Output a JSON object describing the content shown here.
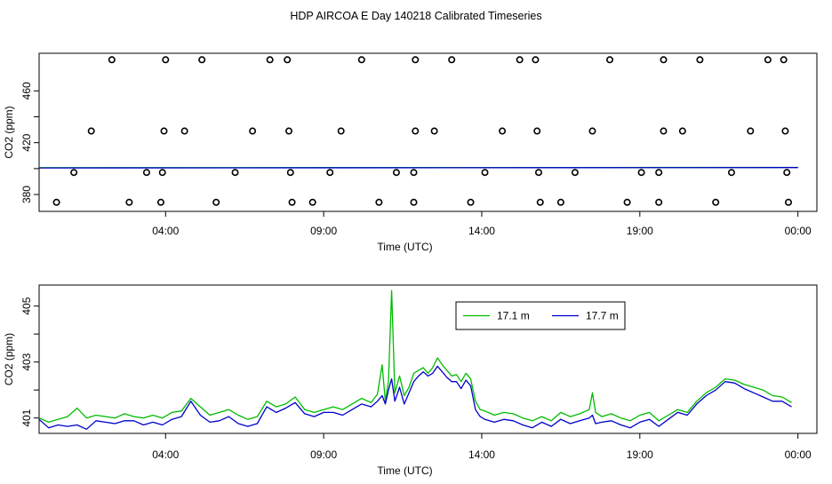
{
  "title": "HDP AIRCOA E  Day 140218  Calibrated Timeseries",
  "colors": {
    "green": "#00bb00",
    "blue": "#0000cc"
  },
  "chart_data": [
    {
      "type": "scatter",
      "xlabel": "Time (UTC)",
      "ylabel": "CO2 (ppm)",
      "x_ticks": [
        "04:00",
        "09:00",
        "14:00",
        "19:00",
        "00:00"
      ],
      "x_tick_hours": [
        4,
        9,
        14,
        19,
        24
      ],
      "xlim": [
        0,
        24.6
      ],
      "y_ticks": [
        380,
        420,
        460
      ],
      "y_tick_labels": [
        "380",
        "420",
        "460"
      ],
      "y_ticks_minor": [
        400,
        440
      ],
      "ylim": [
        367,
        489
      ],
      "calibration_points": [
        {
          "t": 2.3,
          "co2": 484
        },
        {
          "t": 4.0,
          "co2": 484
        },
        {
          "t": 5.15,
          "co2": 484
        },
        {
          "t": 7.3,
          "co2": 484
        },
        {
          "t": 7.85,
          "co2": 484
        },
        {
          "t": 10.2,
          "co2": 484
        },
        {
          "t": 11.9,
          "co2": 484
        },
        {
          "t": 13.05,
          "co2": 484
        },
        {
          "t": 15.2,
          "co2": 484
        },
        {
          "t": 15.7,
          "co2": 484
        },
        {
          "t": 18.05,
          "co2": 484
        },
        {
          "t": 19.75,
          "co2": 484
        },
        {
          "t": 20.9,
          "co2": 484
        },
        {
          "t": 23.05,
          "co2": 484
        },
        {
          "t": 23.55,
          "co2": 484
        },
        {
          "t": 1.65,
          "co2": 429
        },
        {
          "t": 3.95,
          "co2": 429
        },
        {
          "t": 4.6,
          "co2": 429
        },
        {
          "t": 6.75,
          "co2": 429
        },
        {
          "t": 7.9,
          "co2": 429
        },
        {
          "t": 9.55,
          "co2": 429
        },
        {
          "t": 11.9,
          "co2": 429
        },
        {
          "t": 12.5,
          "co2": 429
        },
        {
          "t": 14.65,
          "co2": 429
        },
        {
          "t": 15.75,
          "co2": 429
        },
        {
          "t": 17.5,
          "co2": 429
        },
        {
          "t": 19.75,
          "co2": 429
        },
        {
          "t": 20.35,
          "co2": 429
        },
        {
          "t": 22.5,
          "co2": 429
        },
        {
          "t": 23.6,
          "co2": 429
        },
        {
          "t": 1.1,
          "co2": 397
        },
        {
          "t": 3.4,
          "co2": 397
        },
        {
          "t": 3.9,
          "co2": 397
        },
        {
          "t": 6.2,
          "co2": 397
        },
        {
          "t": 7.95,
          "co2": 397
        },
        {
          "t": 9.2,
          "co2": 397
        },
        {
          "t": 11.3,
          "co2": 397
        },
        {
          "t": 11.85,
          "co2": 397
        },
        {
          "t": 14.1,
          "co2": 397
        },
        {
          "t": 15.8,
          "co2": 397
        },
        {
          "t": 16.95,
          "co2": 397
        },
        {
          "t": 19.05,
          "co2": 397
        },
        {
          "t": 19.6,
          "co2": 397
        },
        {
          "t": 21.9,
          "co2": 397
        },
        {
          "t": 23.65,
          "co2": 397
        },
        {
          "t": 0.55,
          "co2": 374
        },
        {
          "t": 2.85,
          "co2": 374
        },
        {
          "t": 3.85,
          "co2": 374
        },
        {
          "t": 5.6,
          "co2": 374
        },
        {
          "t": 8.0,
          "co2": 374
        },
        {
          "t": 8.65,
          "co2": 374
        },
        {
          "t": 10.75,
          "co2": 374
        },
        {
          "t": 11.85,
          "co2": 374
        },
        {
          "t": 13.65,
          "co2": 374
        },
        {
          "t": 15.85,
          "co2": 374
        },
        {
          "t": 16.5,
          "co2": 374
        },
        {
          "t": 18.6,
          "co2": 374
        },
        {
          "t": 19.6,
          "co2": 374
        },
        {
          "t": 21.4,
          "co2": 374
        },
        {
          "t": 23.7,
          "co2": 374
        }
      ],
      "series": [
        {
          "name": "17.1 m",
          "color": "#00bb00",
          "t": [
            0,
            24
          ],
          "co2": [
            400.7,
            400.9
          ]
        },
        {
          "name": "17.7 m",
          "color": "#0000cc",
          "t": [
            0,
            24
          ],
          "co2": [
            400.5,
            400.8
          ]
        }
      ]
    },
    {
      "type": "line",
      "xlabel": "Time (UTC)",
      "ylabel": "CO2 (ppm)",
      "x_ticks": [
        "04:00",
        "09:00",
        "14:00",
        "19:00",
        "00:00"
      ],
      "x_tick_hours": [
        4,
        9,
        14,
        19,
        24
      ],
      "xlim": [
        0,
        24.6
      ],
      "y_ticks": [
        401,
        403,
        405
      ],
      "y_tick_labels": [
        "401",
        "403",
        "405"
      ],
      "y_ticks_minor": [
        402,
        404
      ],
      "ylim": [
        400.45,
        405.75
      ],
      "legend": {
        "position": "top-right",
        "entries": [
          "17.1 m",
          "17.7 m"
        ]
      },
      "series": [
        {
          "name": "17.1 m",
          "color": "#00bb00",
          "t": [
            0.0,
            0.3,
            0.6,
            0.9,
            1.2,
            1.5,
            1.8,
            2.1,
            2.4,
            2.7,
            3.0,
            3.3,
            3.6,
            3.9,
            4.2,
            4.5,
            4.8,
            5.1,
            5.4,
            5.7,
            6.0,
            6.3,
            6.6,
            6.9,
            7.2,
            7.5,
            7.8,
            8.1,
            8.4,
            8.7,
            9.0,
            9.3,
            9.6,
            9.9,
            10.2,
            10.5,
            10.7,
            10.85,
            10.95,
            11.05,
            11.15,
            11.25,
            11.4,
            11.55,
            11.7,
            11.85,
            12.0,
            12.15,
            12.3,
            12.45,
            12.6,
            12.75,
            12.9,
            13.05,
            13.2,
            13.35,
            13.5,
            13.65,
            13.8,
            13.95,
            14.1,
            14.4,
            14.7,
            15.0,
            15.3,
            15.6,
            15.9,
            16.2,
            16.5,
            16.8,
            17.1,
            17.4,
            17.5,
            17.6,
            17.8,
            18.1,
            18.4,
            18.7,
            19.0,
            19.3,
            19.6,
            19.9,
            20.2,
            20.5,
            20.8,
            21.1,
            21.4,
            21.7,
            22.0,
            22.3,
            22.6,
            22.9,
            23.2,
            23.5,
            23.8
          ],
          "co2": [
            401.0,
            400.85,
            400.95,
            401.05,
            401.35,
            401.0,
            401.1,
            401.05,
            401.0,
            401.15,
            401.05,
            401.0,
            401.1,
            401.0,
            401.2,
            401.25,
            401.7,
            401.4,
            401.1,
            401.2,
            401.3,
            401.1,
            400.95,
            401.05,
            401.6,
            401.4,
            401.5,
            401.75,
            401.3,
            401.2,
            401.3,
            401.4,
            401.3,
            401.5,
            401.7,
            401.55,
            401.85,
            402.9,
            401.6,
            402.3,
            405.55,
            401.9,
            402.5,
            401.8,
            402.1,
            402.6,
            402.7,
            402.8,
            402.6,
            402.8,
            403.15,
            402.9,
            402.7,
            402.5,
            402.55,
            402.3,
            402.6,
            402.4,
            401.6,
            401.3,
            401.25,
            401.1,
            401.2,
            401.15,
            401.0,
            400.9,
            401.05,
            400.9,
            401.2,
            401.05,
            401.15,
            401.3,
            401.9,
            401.2,
            401.05,
            401.15,
            401.0,
            400.9,
            401.1,
            401.2,
            400.9,
            401.1,
            401.3,
            401.2,
            401.6,
            401.9,
            402.1,
            402.4,
            402.35,
            402.2,
            402.1,
            402.0,
            401.8,
            401.75,
            401.55
          ]
        },
        {
          "name": "17.7 m",
          "color": "#0000cc",
          "t": [
            0.0,
            0.3,
            0.6,
            0.9,
            1.2,
            1.5,
            1.8,
            2.1,
            2.4,
            2.7,
            3.0,
            3.3,
            3.6,
            3.9,
            4.2,
            4.5,
            4.8,
            5.1,
            5.4,
            5.7,
            6.0,
            6.3,
            6.6,
            6.9,
            7.2,
            7.5,
            7.8,
            8.1,
            8.4,
            8.7,
            9.0,
            9.3,
            9.6,
            9.9,
            10.2,
            10.5,
            10.7,
            10.85,
            10.95,
            11.05,
            11.15,
            11.25,
            11.4,
            11.55,
            11.7,
            11.85,
            12.0,
            12.15,
            12.3,
            12.45,
            12.6,
            12.75,
            12.9,
            13.05,
            13.2,
            13.35,
            13.5,
            13.65,
            13.8,
            13.95,
            14.1,
            14.4,
            14.7,
            15.0,
            15.3,
            15.6,
            15.9,
            16.2,
            16.5,
            16.8,
            17.1,
            17.4,
            17.5,
            17.6,
            17.8,
            18.1,
            18.4,
            18.7,
            19.0,
            19.3,
            19.6,
            19.9,
            20.2,
            20.5,
            20.8,
            21.1,
            21.4,
            21.7,
            22.0,
            22.3,
            22.6,
            22.9,
            23.2,
            23.5,
            23.8
          ],
          "co2": [
            400.95,
            400.65,
            400.75,
            400.7,
            400.75,
            400.6,
            400.9,
            400.85,
            400.8,
            400.9,
            400.9,
            400.75,
            400.85,
            400.75,
            400.95,
            401.05,
            401.6,
            401.1,
            400.85,
            400.9,
            401.05,
            400.8,
            400.7,
            400.8,
            401.4,
            401.2,
            401.35,
            401.55,
            401.15,
            401.05,
            401.2,
            401.2,
            401.1,
            401.3,
            401.5,
            401.4,
            401.6,
            401.8,
            401.5,
            402.0,
            402.4,
            401.6,
            402.1,
            401.5,
            401.9,
            402.3,
            402.5,
            402.65,
            402.5,
            402.6,
            402.85,
            402.65,
            402.45,
            402.3,
            402.3,
            402.05,
            402.35,
            402.15,
            401.3,
            401.05,
            400.95,
            400.85,
            400.95,
            400.9,
            400.75,
            400.65,
            400.85,
            400.7,
            400.95,
            400.8,
            400.9,
            401.0,
            401.1,
            400.8,
            400.85,
            400.9,
            400.75,
            400.65,
            400.85,
            400.95,
            400.7,
            400.95,
            401.2,
            401.1,
            401.5,
            401.8,
            402.0,
            402.3,
            402.25,
            402.05,
            401.9,
            401.75,
            401.6,
            401.6,
            401.4
          ]
        }
      ]
    }
  ]
}
